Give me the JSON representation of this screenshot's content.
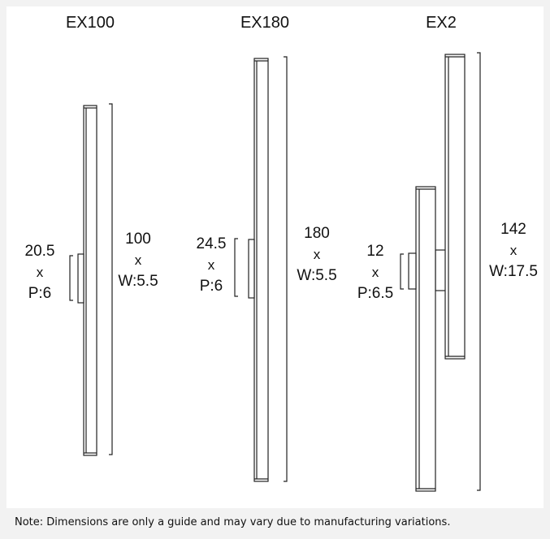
{
  "products": [
    {
      "name": "EX100",
      "depth_label": "20.5",
      "depth_x": "x",
      "depth_projection": "P:6",
      "height_label": "100",
      "height_x": "x",
      "width": "W:5.5"
    },
    {
      "name": "EX180",
      "depth_label": "24.5",
      "depth_x": "x",
      "depth_projection": "P:6",
      "height_label": "180",
      "height_x": "x",
      "width": "W:5.5"
    },
    {
      "name": "EX2",
      "depth_label": "12",
      "depth_x": "x",
      "depth_projection": "P:6.5",
      "height_label": "142",
      "height_x": "x",
      "width": "W:17.5"
    }
  ],
  "note": "Note: Dimensions are only a guide and may vary due to manufacturing variations.",
  "colors": {
    "background": "#f2f2f2",
    "panel": "#ffffff",
    "line": "#222222"
  }
}
